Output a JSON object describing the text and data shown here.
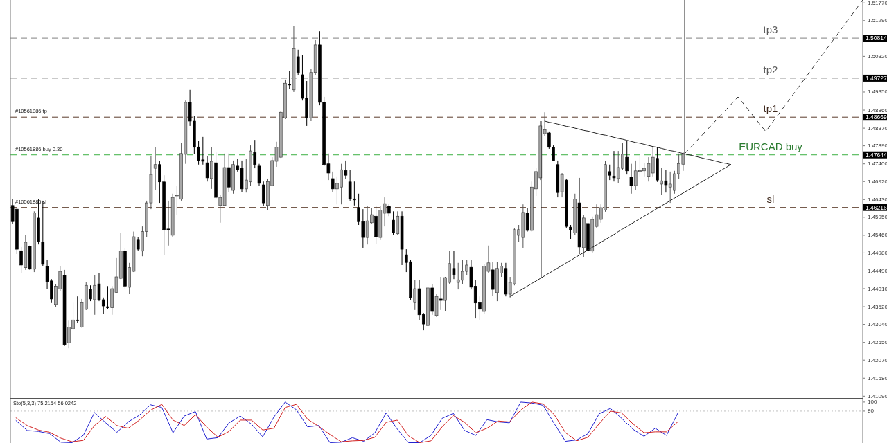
{
  "chart_data": [
    {
      "type": "candlestick",
      "tick_labels": "y",
      "categories": [
        null,
        null,
        null,
        null,
        null,
        null,
        null,
        null,
        null,
        null,
        null,
        null,
        null,
        null,
        null,
        null,
        null,
        null,
        null,
        null,
        null,
        null,
        null,
        null,
        null,
        null,
        null,
        null,
        null,
        null,
        null,
        null,
        null,
        null,
        null,
        null,
        null,
        null,
        null,
        null,
        null,
        null,
        null,
        null,
        null,
        null,
        null,
        null,
        null,
        null,
        null,
        null,
        null,
        null,
        null,
        null,
        null,
        null,
        null,
        null,
        null,
        null,
        null,
        null,
        null,
        null,
        null,
        null,
        null,
        null,
        null,
        null,
        null,
        null,
        null,
        null,
        null,
        null,
        null,
        null,
        null,
        null,
        null,
        null,
        null,
        null,
        null,
        null,
        null,
        null,
        null,
        null,
        null,
        null,
        null,
        null,
        null,
        null,
        null,
        null,
        null,
        null,
        null,
        null,
        null,
        null,
        null,
        null,
        null,
        null,
        null,
        null,
        null,
        null,
        null,
        null,
        null,
        null,
        null,
        null,
        null,
        null,
        null,
        null,
        null,
        null,
        null,
        null,
        null,
        null,
        null,
        null,
        null,
        null,
        null,
        null,
        null,
        null,
        null,
        null,
        null,
        null,
        null,
        null,
        null,
        null,
        null,
        null,
        null,
        null,
        null,
        null,
        null,
        null,
        null,
        null,
        null,
        null,
        null,
        null,
        null,
        null,
        null,
        null,
        null,
        null,
        null,
        null,
        null,
        null,
        null,
        null,
        null,
        null,
        null,
        null,
        null,
        null,
        null,
        null,
        null,
        null,
        null,
        null,
        null,
        null,
        null,
        null,
        null,
        null,
        null,
        null,
        null,
        null,
        null,
        null,
        null
      ],
      "ohlc": [
        [
          1.4627,
          1.4644,
          1.4577,
          1.4583
        ],
        [
          1.4617,
          1.4621,
          1.4495,
          1.4508
        ],
        [
          1.4504,
          1.4514,
          1.4443,
          1.4465
        ],
        [
          1.4458,
          1.4546,
          1.4452,
          1.4527
        ],
        [
          1.4516,
          1.4518,
          1.4452,
          1.4454
        ],
        [
          1.4454,
          1.4611,
          1.4446,
          1.4607
        ],
        [
          1.4593,
          1.4644,
          1.4521,
          1.4529
        ],
        [
          1.4527,
          1.464,
          1.4462,
          1.4467
        ],
        [
          1.4462,
          1.448,
          1.4401,
          1.442
        ],
        [
          1.4422,
          1.4427,
          1.4362,
          1.4373
        ],
        [
          1.4358,
          1.4414,
          1.4352,
          1.4408
        ],
        [
          1.44,
          1.4462,
          1.4395,
          1.4448
        ],
        [
          1.4437,
          1.4452,
          1.4245,
          1.4249
        ],
        [
          1.4254,
          1.4314,
          1.4239,
          1.4297
        ],
        [
          1.4292,
          1.4363,
          1.4288,
          1.4316
        ],
        [
          1.4316,
          1.438,
          1.4307,
          1.4314
        ],
        [
          1.4297,
          1.4373,
          1.4295,
          1.4363
        ],
        [
          1.4345,
          1.4418,
          1.4343,
          1.441
        ],
        [
          1.44,
          1.441,
          1.4367,
          1.4373
        ],
        [
          1.4371,
          1.4437,
          1.433,
          1.441
        ],
        [
          1.4414,
          1.4443,
          1.4367,
          1.4371
        ],
        [
          1.4371,
          1.4377,
          1.4333,
          1.4354
        ],
        [
          1.4352,
          1.4408,
          1.4345,
          1.4349
        ],
        [
          1.4349,
          1.4408,
          1.433,
          1.4401
        ],
        [
          1.4391,
          1.4484,
          1.439,
          1.4433
        ],
        [
          1.4429,
          1.4552,
          1.4427,
          1.4503
        ],
        [
          1.4503,
          1.4512,
          1.4401,
          1.4408
        ],
        [
          1.4405,
          1.4471,
          1.4386,
          1.4458
        ],
        [
          1.4448,
          1.4556,
          1.4446,
          1.4542
        ],
        [
          1.4533,
          1.4542,
          1.4504,
          1.4508
        ],
        [
          1.4503,
          1.457,
          1.4489,
          1.4556
        ],
        [
          1.4556,
          1.464,
          1.4542,
          1.4634
        ],
        [
          1.4634,
          1.4762,
          1.4617,
          1.4711
        ],
        [
          1.4728,
          1.4785,
          1.4668,
          1.4738
        ],
        [
          1.4738,
          1.4747,
          1.4634,
          1.4691
        ],
        [
          1.4691,
          1.4709,
          1.4493,
          1.4561
        ],
        [
          1.4563,
          1.464,
          1.4518,
          1.4561
        ],
        [
          1.4546,
          1.4659,
          1.4542,
          1.4649
        ],
        [
          1.4653,
          1.4681,
          1.4602,
          1.4655
        ],
        [
          1.4644,
          1.4796,
          1.464,
          1.4768
        ],
        [
          1.4766,
          1.4912,
          1.474,
          1.4907
        ],
        [
          1.4907,
          1.4941,
          1.4843,
          1.4856
        ],
        [
          1.4856,
          1.4871,
          1.4766,
          1.4785
        ],
        [
          1.4786,
          1.4803,
          1.4738,
          1.4749
        ],
        [
          1.4751,
          1.4813,
          1.4738,
          1.4747
        ],
        [
          1.4743,
          1.4762,
          1.4692,
          1.4702
        ],
        [
          1.47,
          1.4786,
          1.4672,
          1.4747
        ],
        [
          1.4743,
          1.4771,
          1.4646,
          1.4649
        ],
        [
          1.4627,
          1.4655,
          1.458,
          1.4649
        ],
        [
          1.4627,
          1.4768,
          1.4625,
          1.473
        ],
        [
          1.473,
          1.4768,
          1.4664,
          1.4677
        ],
        [
          1.4668,
          1.4749,
          1.4659,
          1.4738
        ],
        [
          1.4734,
          1.4753,
          1.4719,
          1.4724
        ],
        [
          1.4728,
          1.4749,
          1.4664,
          1.4672
        ],
        [
          1.4672,
          1.4753,
          1.4662,
          1.4696
        ],
        [
          1.4691,
          1.479,
          1.4681,
          1.4775
        ],
        [
          1.4771,
          1.4805,
          1.4728,
          1.4738
        ],
        [
          1.4734,
          1.474,
          1.4681,
          1.4687
        ],
        [
          1.4683,
          1.4692,
          1.4625,
          1.4634
        ],
        [
          1.4627,
          1.47,
          1.4615,
          1.4692
        ],
        [
          1.4681,
          1.4758,
          1.4681,
          1.4749
        ],
        [
          1.4747,
          1.48,
          1.4732,
          1.4785
        ],
        [
          1.4758,
          1.4884,
          1.4756,
          1.488
        ],
        [
          1.4865,
          1.4969,
          1.4862,
          1.4959
        ],
        [
          1.4956,
          1.4993,
          1.4944,
          1.4954
        ],
        [
          1.4941,
          1.5114,
          1.4935,
          1.5053
        ],
        [
          1.5031,
          1.505,
          1.4982,
          1.4988
        ],
        [
          1.4982,
          1.5035,
          1.4912,
          1.4918
        ],
        [
          1.4918,
          1.4965,
          1.4843,
          1.4865
        ],
        [
          1.4865,
          1.4997,
          1.4856,
          1.4988
        ],
        [
          1.4988,
          1.5076,
          1.4982,
          1.5063
        ],
        [
          1.5063,
          1.51,
          1.4899,
          1.4907
        ],
        [
          1.4907,
          1.4922,
          1.4734,
          1.4738
        ],
        [
          1.474,
          1.4768,
          1.4696,
          1.4715
        ],
        [
          1.47,
          1.4719,
          1.4664,
          1.4672
        ],
        [
          1.4672,
          1.4706,
          1.463,
          1.4687
        ],
        [
          1.4677,
          1.474,
          1.463,
          1.4724
        ],
        [
          1.4722,
          1.4749,
          1.47,
          1.4709
        ],
        [
          1.4691,
          1.4724,
          1.464,
          1.4645
        ],
        [
          1.4645,
          1.4692,
          1.4627,
          1.4642
        ],
        [
          1.4621,
          1.4659,
          1.4574,
          1.4583
        ],
        [
          1.4583,
          1.4617,
          1.4512,
          1.454
        ],
        [
          1.454,
          1.4625,
          1.4521,
          1.4585
        ],
        [
          1.458,
          1.4621,
          1.4578,
          1.4602
        ],
        [
          1.4598,
          1.4625,
          1.4523,
          1.4542
        ],
        [
          1.454,
          1.4625,
          1.4533,
          1.4614
        ],
        [
          1.4606,
          1.4649,
          1.457,
          1.4632
        ],
        [
          1.4625,
          1.463,
          1.4598,
          1.4606
        ],
        [
          1.4587,
          1.4611,
          1.4546,
          1.4552
        ],
        [
          1.455,
          1.4611,
          1.4546,
          1.4598
        ],
        [
          1.4598,
          1.4611,
          1.4465,
          1.4508
        ],
        [
          1.4493,
          1.4508,
          1.4446,
          1.4472
        ],
        [
          1.4474,
          1.448,
          1.4371,
          1.4377
        ],
        [
          1.4363,
          1.4424,
          1.4343,
          1.4401
        ],
        [
          1.4401,
          1.4424,
          1.4316,
          1.433
        ],
        [
          1.4331,
          1.4335,
          1.4288,
          1.4305
        ],
        [
          1.4301,
          1.4424,
          1.4283,
          1.4403
        ],
        [
          1.4403,
          1.4414,
          1.433,
          1.4339
        ],
        [
          1.4328,
          1.4386,
          1.4324,
          1.438
        ],
        [
          1.4373,
          1.4433,
          1.4343,
          1.4369
        ],
        [
          1.4369,
          1.4433,
          1.4339,
          1.4431
        ],
        [
          1.4418,
          1.4503,
          1.4414,
          1.4469
        ],
        [
          1.4456,
          1.4503,
          1.4427,
          1.4439
        ],
        [
          1.4418,
          1.4471,
          1.4399,
          1.4425
        ],
        [
          1.4424,
          1.448,
          1.4414,
          1.4448
        ],
        [
          1.4448,
          1.448,
          1.4437,
          1.4465
        ],
        [
          1.4459,
          1.448,
          1.4399,
          1.4405
        ],
        [
          1.4408,
          1.4424,
          1.432,
          1.4362
        ],
        [
          1.4363,
          1.438,
          1.4316,
          1.4345
        ],
        [
          1.4339,
          1.4467,
          1.4333,
          1.4462
        ],
        [
          1.4448,
          1.4518,
          1.4443,
          1.4471
        ],
        [
          1.4452,
          1.4474,
          1.4382,
          1.4399
        ],
        [
          1.439,
          1.4474,
          1.4367,
          1.4456
        ],
        [
          1.4443,
          1.4471,
          1.4433,
          1.4462
        ],
        [
          1.4456,
          1.4471,
          1.438,
          1.4386
        ],
        [
          1.4386,
          1.4433,
          1.4377,
          1.4418
        ],
        [
          1.4414,
          1.4565,
          1.441,
          1.4561
        ],
        [
          1.4546,
          1.4574,
          1.4527,
          1.4561
        ],
        [
          1.454,
          1.463,
          1.4512,
          1.4608
        ],
        [
          1.4606,
          1.4621,
          1.4556,
          1.4559
        ],
        [
          1.4559,
          1.4692,
          1.4556,
          1.4677
        ],
        [
          1.4672,
          1.473,
          1.4653,
          1.4719
        ],
        [
          1.4702,
          1.4856,
          1.4696,
          1.4843
        ],
        [
          1.4822,
          1.488,
          1.4815,
          1.4833
        ],
        [
          1.4824,
          1.4828,
          1.4781,
          1.4785
        ],
        [
          1.4785,
          1.479,
          1.4747,
          1.4749
        ],
        [
          1.4738,
          1.4749,
          1.4649,
          1.4662
        ],
        [
          1.4664,
          1.4715,
          1.4649,
          1.4711
        ],
        [
          1.4696,
          1.47,
          1.4565,
          1.457
        ],
        [
          1.4568,
          1.4574,
          1.4536,
          1.4561
        ],
        [
          1.4552,
          1.4659,
          1.4546,
          1.4644
        ],
        [
          1.4634,
          1.4702,
          1.4495,
          1.4514
        ],
        [
          1.4512,
          1.4602,
          1.4486,
          1.4593
        ],
        [
          1.4578,
          1.4583,
          1.4499,
          1.4504
        ],
        [
          1.4503,
          1.4597,
          1.4499,
          1.4589
        ],
        [
          1.457,
          1.463,
          1.4565,
          1.4602
        ],
        [
          1.4589,
          1.463,
          1.458,
          1.4621
        ],
        [
          1.4615,
          1.4747,
          1.461,
          1.4738
        ],
        [
          1.4719,
          1.4738,
          1.4696,
          1.4709
        ],
        [
          1.4707,
          1.4775,
          1.4692,
          1.4702
        ],
        [
          1.47,
          1.4775,
          1.4687,
          1.473
        ],
        [
          1.4728,
          1.4796,
          1.4724,
          1.4766
        ],
        [
          1.4758,
          1.4803,
          1.4711,
          1.4721
        ],
        [
          1.4704,
          1.474,
          1.4659,
          1.4681
        ],
        [
          1.4681,
          1.4749,
          1.4668,
          1.4721
        ],
        [
          1.4719,
          1.4762,
          1.4706,
          1.4722
        ],
        [
          1.4721,
          1.4743,
          1.4706,
          1.4728
        ],
        [
          1.4706,
          1.4758,
          1.4692,
          1.4741
        ],
        [
          1.4715,
          1.4786,
          1.4706,
          1.4758
        ],
        [
          1.4755,
          1.4785,
          1.4691,
          1.4696
        ],
        [
          1.4685,
          1.473,
          1.4655,
          1.4694
        ],
        [
          1.4694,
          1.4724,
          1.4662,
          1.4683
        ],
        [
          1.4677,
          1.4719,
          1.4634,
          1.4685
        ],
        [
          1.4668,
          1.4721,
          1.4659,
          1.4713
        ],
        [
          1.4713,
          1.4768,
          1.47,
          1.4741
        ],
        [
          1.4739,
          1.4771,
          1.4721,
          1.4766
        ],
        null,
        null,
        null,
        null,
        null,
        null,
        null,
        null,
        null,
        null,
        null,
        null,
        null,
        null,
        null,
        null,
        null,
        null,
        null,
        null,
        null,
        null,
        null,
        null,
        null,
        null,
        null,
        null,
        null,
        null,
        null,
        null,
        null,
        null,
        null,
        null,
        null,
        null,
        null,
        null,
        null
      ],
      "series": [
        {
          "type": "line",
          "color": "#222222",
          "values": [
            null,
            null,
            null,
            null,
            null,
            null,
            null,
            null,
            null,
            null,
            null,
            null,
            null,
            null,
            null,
            null,
            null,
            null,
            null,
            null,
            null,
            null,
            null,
            null,
            null,
            null,
            null,
            null,
            null,
            null,
            null,
            null,
            null,
            null,
            null,
            null,
            null,
            null,
            null,
            null,
            null,
            null,
            null,
            null,
            null,
            null,
            null,
            null,
            null,
            null,
            null,
            null,
            null,
            null,
            null,
            null,
            null,
            null,
            null,
            null,
            null,
            null,
            null,
            null,
            null,
            null,
            null,
            null,
            null,
            null,
            null,
            null,
            null,
            null,
            null,
            null,
            null,
            null,
            null,
            null,
            null,
            null,
            null,
            null,
            null,
            null,
            null,
            null,
            null,
            null,
            null,
            null,
            null,
            null,
            null,
            null,
            null,
            null,
            null,
            null,
            null,
            null,
            null,
            null,
            null,
            null,
            null,
            null,
            null,
            null,
            null,
            null,
            null,
            null,
            null,
            1.438,
            1.4387,
            1.4394,
            1.4401,
            1.4408,
            1.4415,
            1.4422,
            1.4429,
            1.4436,
            1.4443,
            1.445,
            1.4457,
            1.4464,
            1.4471,
            1.4478,
            1.4485,
            1.4492,
            1.4499,
            1.4506,
            1.4513,
            1.452,
            1.4527,
            1.4534,
            1.4541,
            1.4548,
            1.4556,
            1.4563,
            1.457,
            1.4577,
            1.4584,
            1.4591,
            1.4598,
            1.4605,
            1.4612,
            1.4619,
            1.4626,
            1.4633,
            1.464,
            1.4647,
            1.4654,
            1.4661,
            1.4668,
            1.4675,
            1.4682,
            1.4689,
            1.4696,
            1.4703,
            1.471,
            1.4717,
            1.4724,
            1.4731,
            1.4738,
            null,
            null,
            null,
            null,
            null,
            null,
            null,
            null,
            null,
            null,
            null,
            null,
            null,
            null,
            null,
            null,
            null,
            null,
            null,
            null,
            null,
            null,
            null,
            null,
            null,
            null,
            null,
            null,
            null,
            null
          ]
        },
        {
          "type": "line",
          "color": "#222222",
          "values": [
            null,
            null,
            null,
            null,
            null,
            null,
            null,
            null,
            null,
            null,
            null,
            null,
            null,
            null,
            null,
            null,
            null,
            null,
            null,
            null,
            null,
            null,
            null,
            null,
            null,
            null,
            null,
            null,
            null,
            null,
            null,
            null,
            null,
            null,
            null,
            null,
            null,
            null,
            null,
            null,
            null,
            null,
            null,
            null,
            null,
            null,
            null,
            null,
            null,
            null,
            null,
            null,
            null,
            null,
            null,
            null,
            null,
            null,
            null,
            null,
            null,
            null,
            null,
            null,
            null,
            null,
            null,
            null,
            null,
            null,
            null,
            null,
            null,
            null,
            null,
            null,
            null,
            null,
            null,
            null,
            null,
            null,
            null,
            null,
            null,
            null,
            null,
            null,
            null,
            null,
            null,
            null,
            null,
            null,
            null,
            null,
            null,
            null,
            null,
            null,
            null,
            null,
            null,
            null,
            null,
            null,
            null,
            null,
            null,
            null,
            null,
            null,
            null,
            null,
            null,
            null,
            null,
            null,
            null,
            null,
            null,
            null,
            null,
            1.4856,
            1.4853,
            1.4851,
            1.4848,
            1.4845,
            1.4842,
            1.484,
            1.4837,
            1.4834,
            1.4831,
            1.4829,
            1.4826,
            1.4823,
            1.482,
            1.4818,
            1.4815,
            1.4812,
            1.4809,
            1.4807,
            1.4804,
            1.4801,
            1.4798,
            1.4796,
            1.4793,
            1.479,
            1.4787,
            1.4785,
            1.4782,
            1.4779,
            1.4776,
            1.4774,
            1.4771,
            1.4768,
            1.4765,
            1.4763,
            1.476,
            1.4757,
            1.4754,
            1.4752,
            1.4749,
            1.4746,
            1.4743,
            1.4741,
            1.4738,
            null,
            null,
            null,
            null,
            null,
            null,
            null,
            null,
            null,
            null,
            null,
            null,
            null,
            null,
            null,
            null,
            null,
            null,
            null,
            null,
            null,
            null,
            null,
            null,
            null,
            null,
            null,
            null,
            null,
            null
          ]
        }
      ],
      "ylim": [
        1.4104,
        1.5185
      ],
      "yticks": [
        {
          "value": 1.5177,
          "label": "1.51770"
        },
        {
          "value": 1.5129,
          "label": "1.51290"
        },
        {
          "value": 1.5032,
          "label": "1.50320"
        },
        {
          "value": 1.4935,
          "label": "1.49350"
        },
        {
          "value": 1.4886,
          "label": "1.48860"
        },
        {
          "value": 1.4837,
          "label": "1.48370"
        },
        {
          "value": 1.4789,
          "label": "1.47890"
        },
        {
          "value": 1.474,
          "label": "1.47400"
        },
        {
          "value": 1.4692,
          "label": "1.46920"
        },
        {
          "value": 1.4643,
          "label": "1.46430"
        },
        {
          "value": 1.4595,
          "label": "1.45950"
        },
        {
          "value": 1.4546,
          "label": "1.45460"
        },
        {
          "value": 1.4498,
          "label": "1.44980"
        },
        {
          "value": 1.4449,
          "label": "1.44490"
        },
        {
          "value": 1.4401,
          "label": "1.44010"
        },
        {
          "value": 1.4352,
          "label": "1.43520"
        },
        {
          "value": 1.4304,
          "label": "1.43040"
        },
        {
          "value": 1.4255,
          "label": "1.42550"
        },
        {
          "value": 1.4207,
          "label": "1.42070"
        },
        {
          "value": 1.4158,
          "label": "1.41580"
        },
        {
          "value": 1.4109,
          "label": "1.41090"
        }
      ],
      "ref_lines": [
        {
          "axis": "y",
          "value": 1.50814,
          "label": "1.50814",
          "color": "#808080",
          "line_style": "dashed"
        },
        {
          "axis": "y",
          "value": 1.49727,
          "label": "1.49727",
          "color": "#808080",
          "line_style": "dashed"
        },
        {
          "axis": "y",
          "value": 1.48669,
          "label": "1.48669",
          "color": "#5a3a2a",
          "line_style": "dashed"
        },
        {
          "axis": "y",
          "value": 1.47644,
          "label": "1.47644",
          "color": "#3cb043",
          "line_style": "dashed"
        },
        {
          "axis": "y",
          "value": 1.46216,
          "label": "1.46216",
          "color": "#5a3a2a",
          "line_style": "dashed"
        }
      ],
      "annotations": [
        {
          "text": "tp3",
          "y": 1.50814
        },
        {
          "text": "tp2",
          "y": 1.49727
        },
        {
          "text": "tp1",
          "y": 1.48669
        },
        {
          "text": "EURCAD buy",
          "y": 1.47644
        },
        {
          "text": "sl",
          "y": 1.46216
        },
        "#10561886 tp",
        "#10561886 buy 0.30",
        "#10561886 sl"
      ]
    },
    {
      "type": "line",
      "title": "Sto(5,3,3) 75.2154 56.0242",
      "tick_labels": "y",
      "categories": [
        null,
        null,
        null,
        null,
        null,
        null,
        null,
        null,
        null,
        null,
        null,
        null,
        null,
        null,
        null,
        null,
        null,
        null,
        null,
        null,
        null,
        null,
        null,
        null,
        null,
        null,
        null,
        null,
        null,
        null,
        null,
        null,
        null,
        null,
        null,
        null,
        null,
        null,
        null,
        null,
        null,
        null,
        null,
        null,
        null,
        null,
        null,
        null,
        null,
        null,
        null,
        null,
        null,
        null,
        null,
        null,
        null,
        null,
        null,
        null,
        null,
        null,
        null,
        null,
        null,
        null,
        null,
        null,
        null,
        null,
        null,
        null,
        null,
        null,
        null,
        null
      ],
      "series": [
        {
          "color": "#2020d0",
          "values": [
            59,
            37,
            35,
            30,
            11,
            10,
            26,
            77,
            54,
            33,
            56,
            71,
            94,
            88,
            32,
            69,
            79,
            18,
            21,
            54,
            69,
            51,
            23,
            67,
            100,
            83,
            45,
            48,
            10,
            11,
            21,
            13,
            32,
            76,
            40,
            10,
            10,
            26,
            64,
            75,
            37,
            26,
            61,
            56,
            54,
            100,
            98,
            93,
            52,
            13,
            16,
            30,
            74,
            86,
            64,
            40,
            24,
            42,
            26,
            75,
            null,
            null,
            null,
            null,
            null,
            null,
            null,
            null,
            null,
            null,
            null,
            null,
            null,
            null,
            null,
            null
          ]
        },
        {
          "color": "#d02020",
          "values": [
            65,
            48,
            38,
            33,
            20,
            12,
            15,
            48,
            68,
            48,
            42,
            60,
            82,
            95,
            60,
            48,
            72,
            45,
            22,
            35,
            60,
            60,
            38,
            42,
            88,
            95,
            62,
            46,
            28,
            12,
            14,
            15,
            22,
            55,
            60,
            25,
            10,
            14,
            45,
            70,
            55,
            32,
            42,
            58,
            56,
            82,
            100,
            96,
            72,
            32,
            14,
            22,
            52,
            80,
            76,
            52,
            32,
            34,
            34,
            56,
            null,
            null,
            null,
            null,
            null,
            null,
            null,
            null,
            null,
            null,
            null,
            null,
            null,
            null,
            null,
            null
          ]
        }
      ],
      "ylim": [
        8,
        106
      ],
      "yticks": [
        100,
        80
      ],
      "ref_lines": [
        {
          "axis": "y",
          "value": 80,
          "color": "#c0c0c0",
          "line_style": "dotted"
        }
      ]
    }
  ]
}
